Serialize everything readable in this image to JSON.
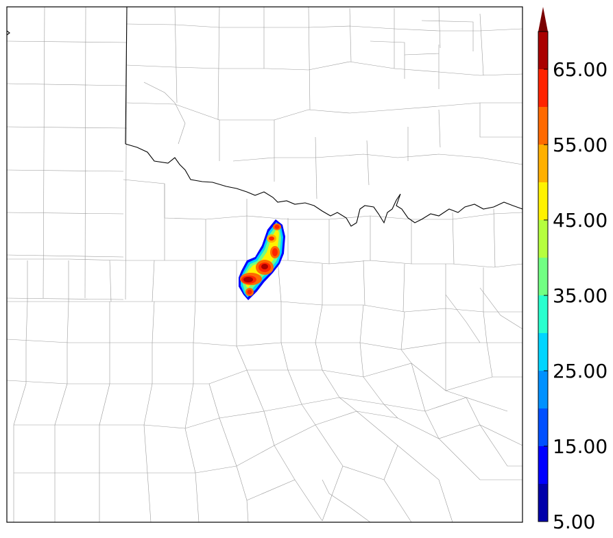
{
  "colorbar": {
    "levels": [
      5,
      10,
      15,
      20,
      25,
      30,
      35,
      40,
      45,
      50,
      55,
      60,
      65,
      70
    ],
    "colors": [
      "#0000aa",
      "#0000ff",
      "#0050ff",
      "#0091ff",
      "#00d5ff",
      "#29ffce",
      "#72ff83",
      "#b6ff3f",
      "#fff200",
      "#ffb000",
      "#ff6a00",
      "#ff2400",
      "#aa0000"
    ],
    "extend": "max",
    "extend_color": "#7a0000",
    "tick_labels": [
      "5.00",
      "15.00",
      "25.00",
      "35.00",
      "45.00",
      "55.00",
      "65.00"
    ]
  },
  "map": {
    "background": "#ffffff",
    "county_line_color": "#999999",
    "state_line_color": "#000000",
    "storm_cells": [
      {
        "dbz": 68
      },
      {
        "dbz": 66
      },
      {
        "dbz": 64
      },
      {
        "dbz": 62
      },
      {
        "dbz": 60
      },
      {
        "dbz": 58
      }
    ]
  }
}
